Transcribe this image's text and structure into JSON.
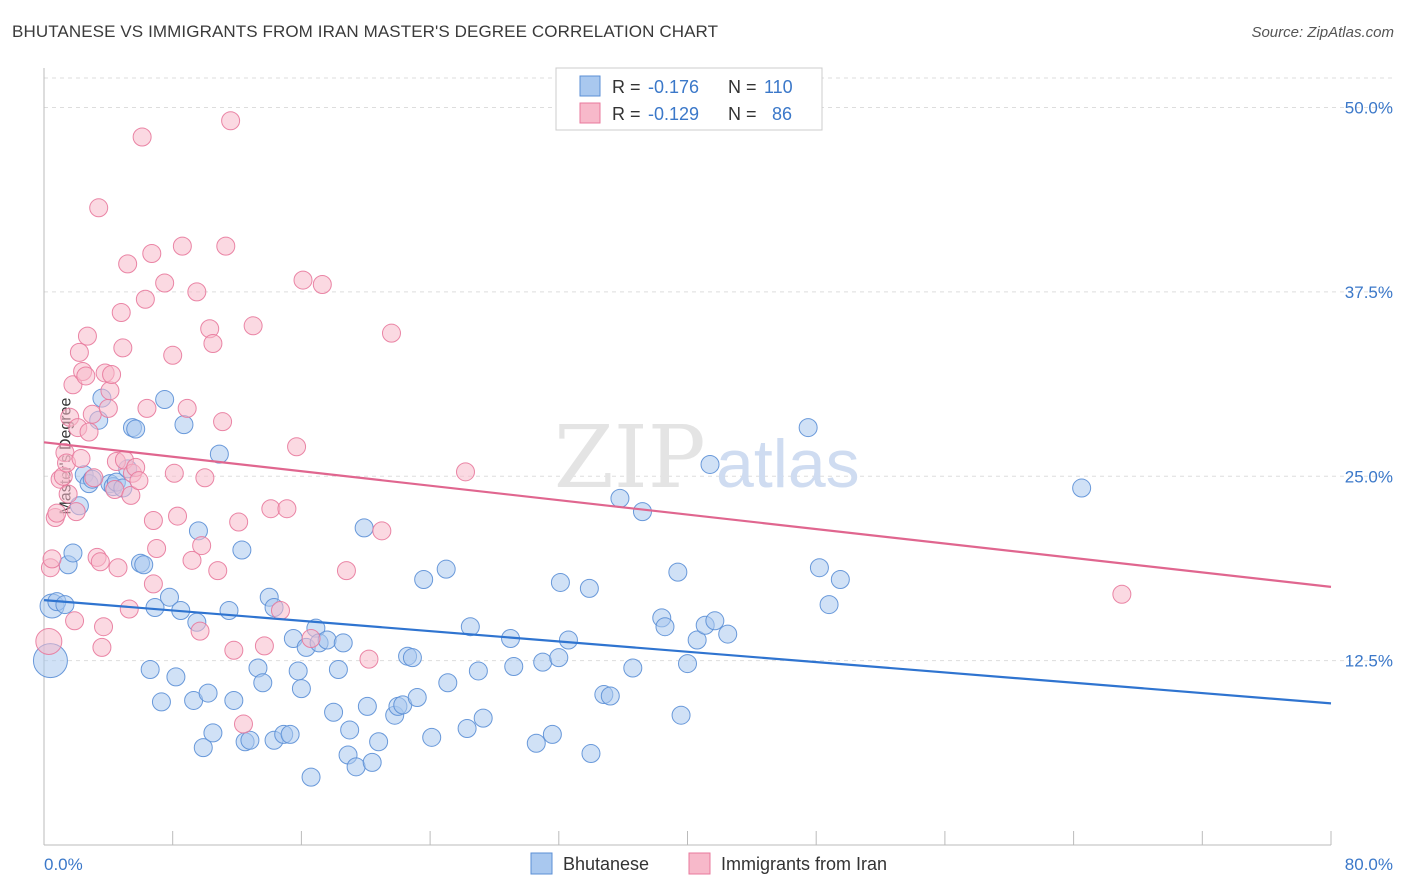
{
  "title": "BHUTANESE VS IMMIGRANTS FROM IRAN MASTER'S DEGREE CORRELATION CHART",
  "source": "Source: ZipAtlas.com",
  "watermark": {
    "zip": "ZIP",
    "atlas": "atlas"
  },
  "legend_stats": [
    {
      "r_label": "R =",
      "r_value": "-0.176",
      "n_label": "N =",
      "n_value": "110"
    },
    {
      "r_label": "R =",
      "r_value": "-0.129",
      "n_label": "N =",
      "n_value": "86"
    }
  ],
  "colors": {
    "blue_fill": "#a9c8ef",
    "blue_stroke": "#5b8fd6",
    "blue_line": "#2f74d0",
    "pink_fill": "#f7b9ca",
    "pink_stroke": "#e8799c",
    "pink_line": "#e0668f",
    "tick_text": "#3b78c9",
    "grid": "#dddddd"
  },
  "chart_data": {
    "type": "scatter",
    "title": "BHUTANESE VS IMMIGRANTS FROM IRAN MASTER'S DEGREE CORRELATION CHART",
    "xlabel": "",
    "ylabel": "Master's Degree",
    "xlim": [
      0,
      80
    ],
    "ylim": [
      0,
      52
    ],
    "x_tick_labels": [
      "0.0%",
      "80.0%"
    ],
    "y_ticks": [
      12.5,
      25.0,
      37.5,
      50.0
    ],
    "y_tick_labels": [
      "12.5%",
      "25.0%",
      "37.5%",
      "50.0%"
    ],
    "grid": "horizontal dashed",
    "legend_position": "bottom-center",
    "series": [
      {
        "name": "Bhutanese",
        "color": "#a9c8ef",
        "trend": {
          "x": [
            0,
            80
          ],
          "y": [
            16.6,
            9.6
          ]
        },
        "points": [
          [
            0.4,
            12.5
          ],
          [
            0.5,
            16.2
          ],
          [
            0.8,
            16.5
          ],
          [
            1.3,
            16.3
          ],
          [
            1.5,
            19.0
          ],
          [
            1.8,
            19.8
          ],
          [
            2.2,
            23.0
          ],
          [
            2.5,
            25.1
          ],
          [
            2.8,
            24.5
          ],
          [
            3.0,
            24.8
          ],
          [
            3.4,
            28.8
          ],
          [
            3.6,
            30.3
          ],
          [
            4.1,
            24.5
          ],
          [
            4.3,
            24.3
          ],
          [
            4.5,
            24.6
          ],
          [
            4.9,
            24.2
          ],
          [
            5.2,
            25.5
          ],
          [
            5.5,
            28.3
          ],
          [
            5.7,
            28.2
          ],
          [
            6.0,
            19.1
          ],
          [
            6.2,
            19.0
          ],
          [
            6.6,
            11.9
          ],
          [
            6.9,
            16.1
          ],
          [
            7.3,
            9.7
          ],
          [
            7.5,
            30.2
          ],
          [
            7.8,
            16.8
          ],
          [
            8.2,
            11.4
          ],
          [
            8.5,
            15.9
          ],
          [
            8.7,
            28.5
          ],
          [
            9.3,
            9.8
          ],
          [
            9.5,
            15.1
          ],
          [
            9.6,
            21.3
          ],
          [
            9.9,
            6.6
          ],
          [
            10.2,
            10.3
          ],
          [
            10.5,
            7.6
          ],
          [
            10.9,
            26.5
          ],
          [
            11.5,
            15.9
          ],
          [
            11.8,
            9.8
          ],
          [
            12.3,
            20.0
          ],
          [
            12.5,
            7.0
          ],
          [
            12.8,
            7.1
          ],
          [
            13.3,
            12.0
          ],
          [
            13.6,
            11.0
          ],
          [
            14.0,
            16.8
          ],
          [
            14.3,
            16.1
          ],
          [
            14.3,
            7.1
          ],
          [
            14.9,
            7.5
          ],
          [
            15.3,
            7.5
          ],
          [
            15.5,
            14.0
          ],
          [
            15.8,
            11.8
          ],
          [
            16.0,
            10.6
          ],
          [
            16.3,
            13.4
          ],
          [
            16.6,
            4.6
          ],
          [
            16.9,
            14.7
          ],
          [
            17.1,
            13.7
          ],
          [
            17.6,
            13.9
          ],
          [
            18.0,
            9.0
          ],
          [
            18.3,
            11.9
          ],
          [
            18.6,
            13.7
          ],
          [
            18.9,
            6.1
          ],
          [
            19.0,
            7.8
          ],
          [
            19.4,
            5.3
          ],
          [
            19.9,
            21.5
          ],
          [
            20.1,
            9.4
          ],
          [
            20.4,
            5.6
          ],
          [
            20.8,
            7.0
          ],
          [
            21.8,
            8.8
          ],
          [
            22.0,
            9.4
          ],
          [
            22.3,
            9.5
          ],
          [
            22.6,
            12.8
          ],
          [
            22.9,
            12.7
          ],
          [
            23.2,
            10.0
          ],
          [
            23.6,
            18.0
          ],
          [
            24.1,
            7.3
          ],
          [
            25.0,
            18.7
          ],
          [
            25.1,
            11.0
          ],
          [
            26.3,
            7.9
          ],
          [
            26.5,
            14.8
          ],
          [
            27.0,
            11.8
          ],
          [
            27.3,
            8.6
          ],
          [
            29.0,
            14.0
          ],
          [
            29.2,
            12.1
          ],
          [
            30.6,
            6.9
          ],
          [
            31.0,
            12.4
          ],
          [
            31.6,
            7.5
          ],
          [
            32.0,
            12.7
          ],
          [
            32.1,
            17.8
          ],
          [
            32.6,
            13.9
          ],
          [
            33.9,
            17.4
          ],
          [
            34.0,
            6.2
          ],
          [
            34.8,
            10.2
          ],
          [
            35.2,
            10.1
          ],
          [
            35.8,
            23.5
          ],
          [
            36.6,
            12.0
          ],
          [
            37.2,
            22.6
          ],
          [
            38.4,
            15.4
          ],
          [
            38.6,
            14.8
          ],
          [
            39.4,
            18.5
          ],
          [
            39.6,
            8.8
          ],
          [
            40.0,
            12.3
          ],
          [
            40.6,
            13.9
          ],
          [
            41.1,
            14.9
          ],
          [
            41.4,
            25.8
          ],
          [
            41.7,
            15.2
          ],
          [
            42.5,
            14.3
          ],
          [
            47.5,
            28.3
          ],
          [
            48.2,
            18.8
          ],
          [
            48.8,
            16.3
          ],
          [
            49.5,
            18.0
          ],
          [
            64.5,
            24.2
          ]
        ]
      },
      {
        "name": "Immigrants from Iran",
        "color": "#f7b9ca",
        "trend": {
          "x": [
            0,
            80
          ],
          "y": [
            27.3,
            17.5
          ]
        },
        "points": [
          [
            0.3,
            13.8
          ],
          [
            0.4,
            18.8
          ],
          [
            0.5,
            19.4
          ],
          [
            0.7,
            22.2
          ],
          [
            0.8,
            22.5
          ],
          [
            1.0,
            24.8
          ],
          [
            1.2,
            25.0
          ],
          [
            1.3,
            26.6
          ],
          [
            1.4,
            25.9
          ],
          [
            1.5,
            23.8
          ],
          [
            1.6,
            29.0
          ],
          [
            1.8,
            31.2
          ],
          [
            1.9,
            15.2
          ],
          [
            2.0,
            22.6
          ],
          [
            2.1,
            28.3
          ],
          [
            2.2,
            33.4
          ],
          [
            2.3,
            26.2
          ],
          [
            2.4,
            32.1
          ],
          [
            2.6,
            31.8
          ],
          [
            2.7,
            34.5
          ],
          [
            2.8,
            28.0
          ],
          [
            3.0,
            29.2
          ],
          [
            3.1,
            24.9
          ],
          [
            3.3,
            19.5
          ],
          [
            3.4,
            43.2
          ],
          [
            3.5,
            19.2
          ],
          [
            3.6,
            13.4
          ],
          [
            3.7,
            14.8
          ],
          [
            3.8,
            32.0
          ],
          [
            4.0,
            29.6
          ],
          [
            4.1,
            30.8
          ],
          [
            4.2,
            31.9
          ],
          [
            4.4,
            24.1
          ],
          [
            4.5,
            26.0
          ],
          [
            4.6,
            18.8
          ],
          [
            4.8,
            36.1
          ],
          [
            4.9,
            33.7
          ],
          [
            5.0,
            26.1
          ],
          [
            5.2,
            39.4
          ],
          [
            5.4,
            23.7
          ],
          [
            5.5,
            25.2
          ],
          [
            5.7,
            25.6
          ],
          [
            5.9,
            24.7
          ],
          [
            6.1,
            48.0
          ],
          [
            6.3,
            37.0
          ],
          [
            6.4,
            29.6
          ],
          [
            6.7,
            40.1
          ],
          [
            6.8,
            17.7
          ],
          [
            7.0,
            20.1
          ],
          [
            7.5,
            38.1
          ],
          [
            8.0,
            33.2
          ],
          [
            8.1,
            25.2
          ],
          [
            8.3,
            22.3
          ],
          [
            8.6,
            40.6
          ],
          [
            8.9,
            29.6
          ],
          [
            9.2,
            19.3
          ],
          [
            9.5,
            37.5
          ],
          [
            9.8,
            20.3
          ],
          [
            10.0,
            24.9
          ],
          [
            10.3,
            35.0
          ],
          [
            10.5,
            34.0
          ],
          [
            10.8,
            18.6
          ],
          [
            11.1,
            28.7
          ],
          [
            11.3,
            40.6
          ],
          [
            11.6,
            49.1
          ],
          [
            11.8,
            13.2
          ],
          [
            12.1,
            21.9
          ],
          [
            12.4,
            8.2
          ],
          [
            13.0,
            35.2
          ],
          [
            13.7,
            13.5
          ],
          [
            14.1,
            22.8
          ],
          [
            14.7,
            15.9
          ],
          [
            15.1,
            22.8
          ],
          [
            15.7,
            27.0
          ],
          [
            16.1,
            38.3
          ],
          [
            16.6,
            14.0
          ],
          [
            17.3,
            38.0
          ],
          [
            18.8,
            18.6
          ],
          [
            20.2,
            12.6
          ],
          [
            21.0,
            21.3
          ],
          [
            21.6,
            34.7
          ],
          [
            26.2,
            25.3
          ],
          [
            67.0,
            17.0
          ],
          [
            5.3,
            16.0
          ],
          [
            6.8,
            22.0
          ],
          [
            9.7,
            14.5
          ]
        ]
      }
    ]
  }
}
